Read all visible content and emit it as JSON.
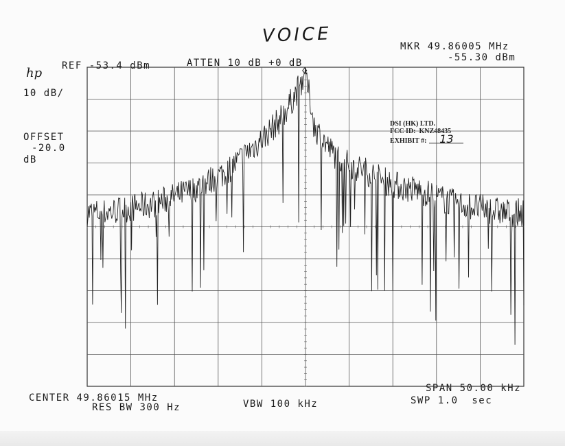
{
  "title_handwritten": "VOICE",
  "logo": "hp",
  "header": {
    "ref": "REF -53.4 dBm",
    "atten": "ATTEN 10 dB +0 dB",
    "marker_freq": "MKR 49.86005 MHz",
    "marker_level": "-55.30 dBm",
    "scale": "10 dB/",
    "offset_label": "OFFSET",
    "offset_value": "-20.0",
    "offset_unit": "dB"
  },
  "footer": {
    "center": "CENTER 49.86015 MHz",
    "res_bw": "RES BW 300 Hz",
    "vbw": "VBW 100 kHz",
    "span": "SPAN 50.00 kHz",
    "sweep": "SWP 1.0  sec"
  },
  "stamp": {
    "company": "DSI (HK) LTD.",
    "fcc_id": "FCC ID:  KNZ48435",
    "exhibit_label": "EXHIBIT #:",
    "exhibit_number": "13"
  },
  "chart_data": {
    "type": "line",
    "title": "VOICE",
    "xlabel": "",
    "ylabel": "",
    "x_unit": "kHz offset from center",
    "y_unit": "dBm",
    "xlim": [
      -25,
      25
    ],
    "ylim": [
      -153.4,
      -53.4
    ],
    "ref_level": -53.4,
    "scale_db_per_div": 10,
    "grid": true,
    "divisions": {
      "x": 10,
      "y": 10
    },
    "marker": {
      "x": -0.1,
      "y": -55.3
    },
    "envelope_series": {
      "name": "",
      "x": [
        -25,
        -23,
        -21,
        -19,
        -17,
        -15,
        -13,
        -11,
        -9,
        -7,
        -5,
        -3,
        -2,
        -1,
        -0.5,
        -0.1,
        0.5,
        1,
        2,
        3,
        5,
        7,
        9,
        11,
        13,
        15,
        17,
        19,
        21,
        23,
        25
      ],
      "y": [
        -99,
        -99,
        -98,
        -97,
        -96,
        -94,
        -92,
        -89,
        -86,
        -81,
        -76,
        -70,
        -66,
        -61,
        -58,
        -55.3,
        -63,
        -72,
        -76,
        -80,
        -84,
        -86,
        -89,
        -91,
        -92,
        -94,
        -96,
        -97,
        -98,
        -99,
        -99
      ]
    }
  }
}
